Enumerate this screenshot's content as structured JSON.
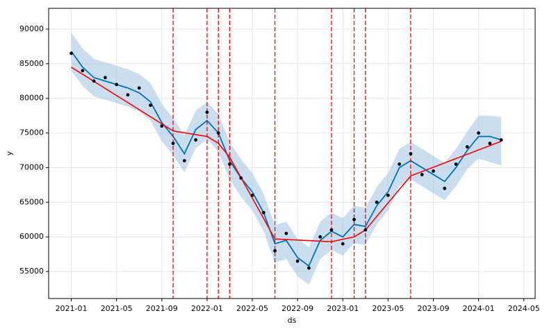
{
  "chart_data": {
    "type": "forecast",
    "xlabel": "ds",
    "ylabel": "y",
    "grid": true,
    "x": [
      "2021-01",
      "2021-02",
      "2021-03",
      "2021-04",
      "2021-05",
      "2021-06",
      "2021-07",
      "2021-08",
      "2021-09",
      "2021-10",
      "2021-11",
      "2021-12",
      "2022-01",
      "2022-02",
      "2022-03",
      "2022-04",
      "2022-05",
      "2022-06",
      "2022-07",
      "2022-08",
      "2022-09",
      "2022-10",
      "2022-11",
      "2022-12",
      "2023-01",
      "2023-02",
      "2023-03",
      "2023-04",
      "2023-05",
      "2023-06",
      "2023-07",
      "2023-08",
      "2023-09",
      "2023-10",
      "2023-11",
      "2023-12",
      "2024-01",
      "2024-02",
      "2024-03"
    ],
    "points": {
      "color": "#000000",
      "values": [
        86500,
        84000,
        82500,
        83000,
        82000,
        80500,
        81500,
        79000,
        76000,
        73500,
        71000,
        74000,
        78000,
        75000,
        70500,
        68500,
        66000,
        63500,
        58000,
        60500,
        56500,
        55500,
        60000,
        61000,
        59000,
        62500,
        61000,
        65000,
        66000,
        70500,
        72000,
        69000,
        69500,
        67000,
        70500,
        73000,
        75000,
        73500,
        74000
      ]
    },
    "yhat": {
      "color": "#0072b2",
      "values": [
        86800,
        84500,
        83000,
        82500,
        82000,
        81500,
        80800,
        79500,
        76500,
        74500,
        72000,
        75500,
        76800,
        75000,
        71000,
        68500,
        66500,
        63500,
        59000,
        59500,
        57000,
        55800,
        59500,
        60800,
        60000,
        61800,
        61500,
        64500,
        66500,
        70000,
        71000,
        70000,
        69000,
        68000,
        70000,
        72500,
        74500,
        74500,
        74000
      ]
    },
    "lower": {
      "values": [
        84000,
        81800,
        80300,
        79800,
        79300,
        78800,
        78100,
        76800,
        73800,
        71800,
        69300,
        72800,
        74100,
        72300,
        68300,
        65800,
        63800,
        60800,
        56300,
        56800,
        54300,
        53100,
        56800,
        58100,
        57300,
        59100,
        58800,
        61800,
        63800,
        67300,
        68300,
        67300,
        66300,
        65300,
        67300,
        69800,
        71300,
        70800,
        70300
      ]
    },
    "upper": {
      "values": [
        89500,
        87200,
        85700,
        85200,
        84700,
        84200,
        83500,
        82200,
        79200,
        77200,
        74700,
        78200,
        79500,
        77700,
        73700,
        71200,
        69200,
        66200,
        61700,
        62200,
        59700,
        58500,
        62200,
        63500,
        62700,
        64500,
        64200,
        67200,
        69200,
        72700,
        73700,
        72700,
        71700,
        70700,
        72700,
        75200,
        77500,
        77500,
        77300
      ]
    },
    "band_color": "#a6c8e5",
    "trend": {
      "color": "#ff0000",
      "x": [
        "2021-01",
        "2021-10",
        "2022-01",
        "2022-02",
        "2022-03",
        "2022-07",
        "2022-12",
        "2023-02",
        "2023-03",
        "2023-07",
        "2024-03"
      ],
      "values": [
        84500,
        75300,
        74500,
        73500,
        71500,
        59700,
        59300,
        60000,
        61000,
        68800,
        73800
      ]
    },
    "changepoints": {
      "color": "#ff0000",
      "x": [
        "2021-10",
        "2022-01",
        "2022-02",
        "2022-03",
        "2022-07",
        "2022-12",
        "2023-02",
        "2023-03",
        "2023-07"
      ]
    },
    "xlim": [
      "2020-11",
      "2024-06"
    ],
    "xticks": [
      "2021-01",
      "2021-05",
      "2021-09",
      "2022-01",
      "2022-05",
      "2022-09",
      "2023-01",
      "2023-05",
      "2023-09",
      "2024-01",
      "2024-05"
    ],
    "ylim": [
      51100,
      93000
    ],
    "yticks": [
      55000,
      60000,
      65000,
      70000,
      75000,
      80000,
      85000,
      90000
    ]
  }
}
